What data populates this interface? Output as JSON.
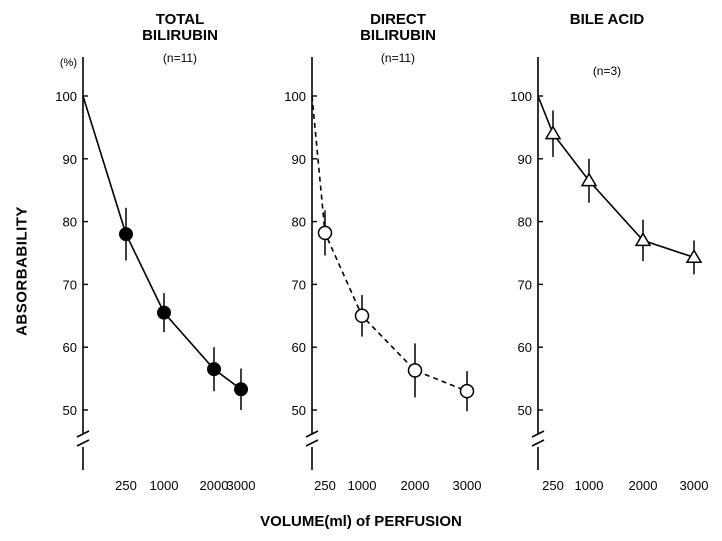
{
  "figure": {
    "ylabel": "ABSORBABILITY",
    "xlabel": "VOLUME(ml) of PERFUSION",
    "unit": "(%)"
  },
  "chart_data": [
    {
      "type": "line",
      "title": "TOTAL BILIRUBIN",
      "title_lines": [
        "TOTAL",
        "BILIRUBIN"
      ],
      "subtitle": "(n=11)",
      "marker": "filled-circle",
      "line_style": "solid",
      "x": [
        0,
        250,
        1000,
        2000,
        3000
      ],
      "x_ticks": [
        "250",
        "1000",
        "2000",
        "3000"
      ],
      "y": [
        100,
        78,
        65.5,
        56.5,
        53.3
      ],
      "error": [
        null,
        4.2,
        3.1,
        3.5,
        3.3
      ],
      "ylim": [
        45,
        100
      ],
      "y_ticks": [
        50,
        60,
        70,
        80,
        90,
        100
      ]
    },
    {
      "type": "line",
      "title": "DIRECT BILIRUBIN",
      "title_lines": [
        "DIRECT",
        "BILIRUBIN"
      ],
      "subtitle": "(n=11)",
      "marker": "open-circle",
      "line_style": "dashed",
      "x": [
        0,
        250,
        1000,
        2000,
        3000
      ],
      "x_ticks": [
        "250",
        "1000",
        "2000",
        "3000"
      ],
      "y": [
        100,
        78.2,
        65,
        56.3,
        53
      ],
      "error": [
        null,
        3.6,
        3.3,
        4.3,
        3.2
      ],
      "ylim": [
        45,
        100
      ],
      "y_ticks": [
        50,
        60,
        70,
        80,
        90,
        100
      ]
    },
    {
      "type": "line",
      "title": "BILE ACID",
      "title_lines": [
        "BILE ACID"
      ],
      "subtitle": "(n=3)",
      "marker": "open-triangle",
      "line_style": "solid",
      "x": [
        0,
        250,
        1000,
        2000,
        3000
      ],
      "x_ticks": [
        "250",
        "1000",
        "2000",
        "3000"
      ],
      "y": [
        100,
        94,
        86.5,
        77,
        74.3
      ],
      "error": [
        null,
        3.7,
        3.5,
        3.3,
        2.7
      ],
      "ylim": [
        45,
        100
      ],
      "y_ticks": [
        50,
        60,
        70,
        80,
        90,
        100
      ]
    }
  ]
}
